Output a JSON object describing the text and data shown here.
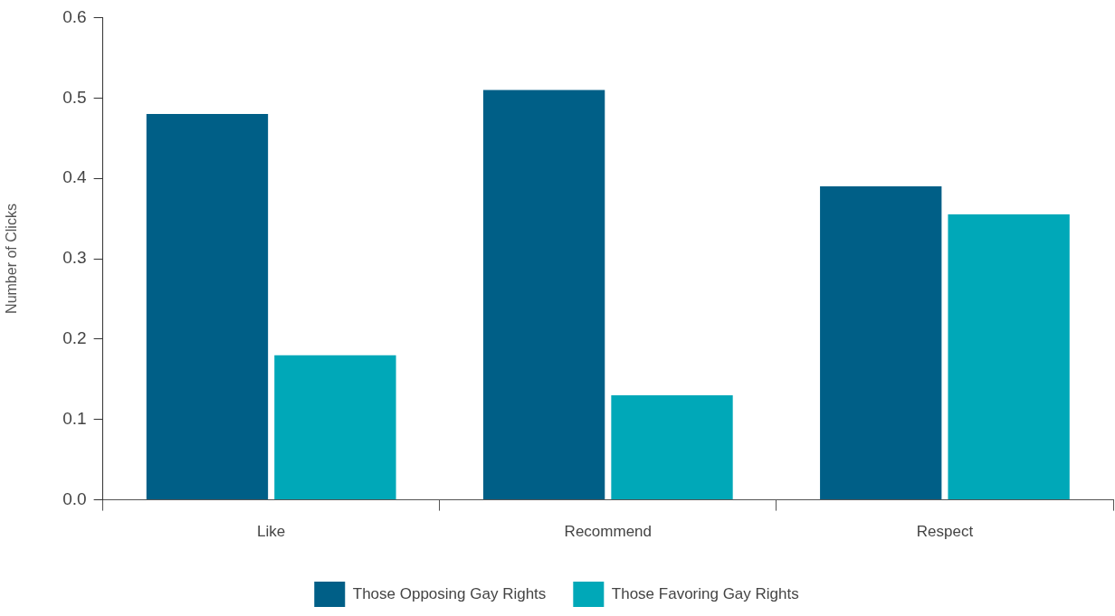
{
  "chart_data": {
    "type": "bar",
    "ylabel": "Number of Clicks",
    "categories": [
      "Like",
      "Recommend",
      "Respect"
    ],
    "series": [
      {
        "name": "Those Opposing Gay Rights",
        "color": "#005f87",
        "values": [
          0.48,
          0.51,
          0.39
        ]
      },
      {
        "name": "Those Favoring Gay Rights",
        "color": "#00a8b8",
        "values": [
          0.18,
          0.13,
          0.355
        ]
      }
    ],
    "ylim": [
      0,
      0.6
    ],
    "yticks": [
      {
        "value": 0,
        "label": "0.0"
      },
      {
        "value": 0.1,
        "label": "0.1"
      },
      {
        "value": 0.2,
        "label": "0.2"
      },
      {
        "value": 0.3,
        "label": "0.3"
      },
      {
        "value": 0.4,
        "label": "0.4"
      },
      {
        "value": 0.5,
        "label": "0.5"
      },
      {
        "value": 0.6,
        "label": "0.6"
      }
    ],
    "grid": false,
    "legend": "bottom"
  }
}
